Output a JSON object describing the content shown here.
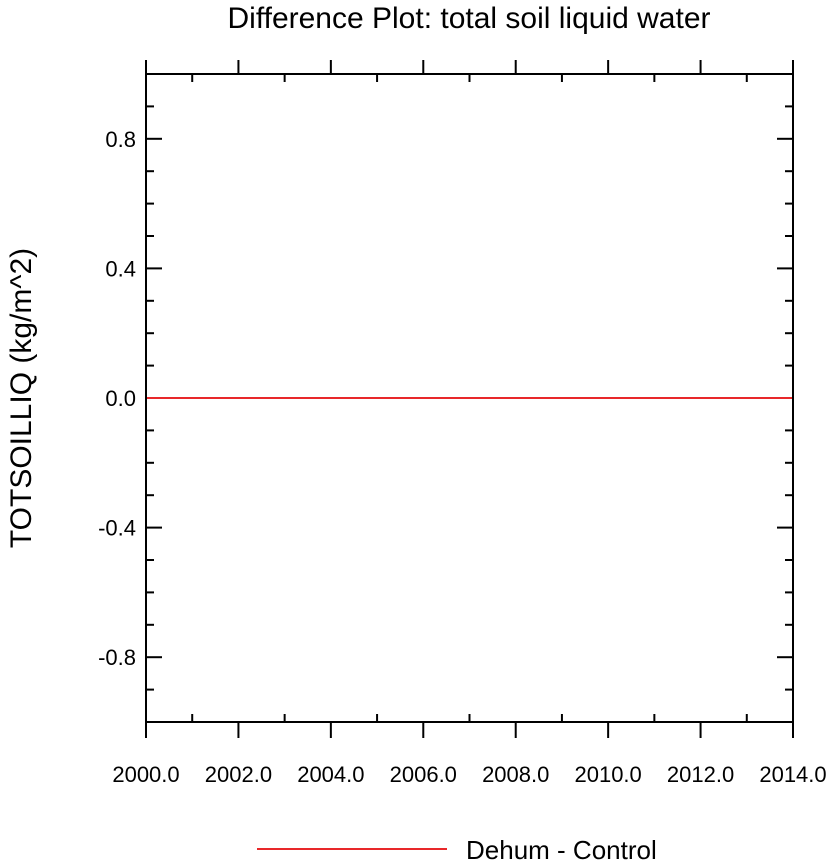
{
  "chart_data": {
    "type": "line",
    "title": "Difference Plot: total soil liquid water",
    "xlabel": "",
    "ylabel": "TOTSOILLIQ  (kg/m^2)",
    "xlim": [
      2000.0,
      2014.0
    ],
    "ylim": [
      -1.0,
      1.0
    ],
    "x_ticks": [
      2000.0,
      2002.0,
      2004.0,
      2006.0,
      2008.0,
      2010.0,
      2012.0,
      2014.0
    ],
    "x_tick_labels": [
      "2000.0",
      "2002.0",
      "2004.0",
      "2006.0",
      "2008.0",
      "2010.0",
      "2012.0",
      "2014.0"
    ],
    "y_ticks": [
      -0.8,
      -0.4,
      0.0,
      0.4,
      0.8
    ],
    "y_tick_labels": [
      "-0.8",
      "-0.4",
      "0.0",
      "0.4",
      "0.8"
    ],
    "grid": false,
    "legend_position": "bottom",
    "series": [
      {
        "name": "Dehum - Control",
        "color": "#e8282a",
        "x": [
          2000.0,
          2014.0
        ],
        "y": [
          0.0,
          0.0
        ]
      }
    ]
  }
}
